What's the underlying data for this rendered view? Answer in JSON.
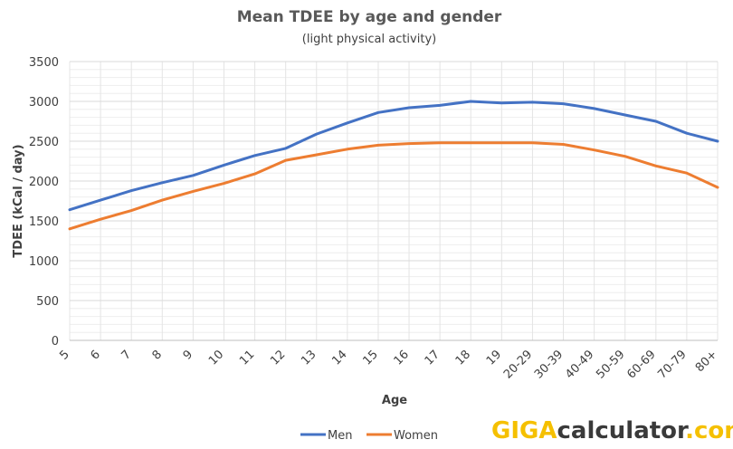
{
  "chart_data": {
    "type": "line",
    "title": "Mean TDEE by age and gender",
    "subtitle": "(light physical activity)",
    "xlabel": "Age",
    "ylabel": "TDEE (kCal / day)",
    "categories": [
      "5",
      "6",
      "7",
      "8",
      "9",
      "10",
      "11",
      "12",
      "13",
      "14",
      "15",
      "16",
      "17",
      "18",
      "19",
      "20-29",
      "30-39",
      "40-49",
      "50-59",
      "60-69",
      "70-79",
      "80+"
    ],
    "ylim": [
      0,
      3500
    ],
    "yticks": [
      0,
      500,
      1000,
      1500,
      2000,
      2500,
      3000,
      3500
    ],
    "grid": true,
    "legend_position": "bottom",
    "series": [
      {
        "name": "Men",
        "color": "#4472c4",
        "values": [
          1640,
          1760,
          1880,
          1980,
          2070,
          2200,
          2320,
          2410,
          2590,
          2730,
          2860,
          2920,
          2950,
          3000,
          2980,
          2990,
          2970,
          2910,
          2830,
          2750,
          2600,
          2500
        ]
      },
      {
        "name": "Women",
        "color": "#ed7d31",
        "values": [
          1400,
          1520,
          1630,
          1760,
          1870,
          1970,
          2090,
          2260,
          2330,
          2400,
          2450,
          2470,
          2480,
          2480,
          2480,
          2480,
          2460,
          2390,
          2310,
          2190,
          2100,
          1920
        ]
      }
    ]
  },
  "watermark": {
    "part1": "GIGA",
    "part2": "calculator",
    "part3": ".com"
  }
}
